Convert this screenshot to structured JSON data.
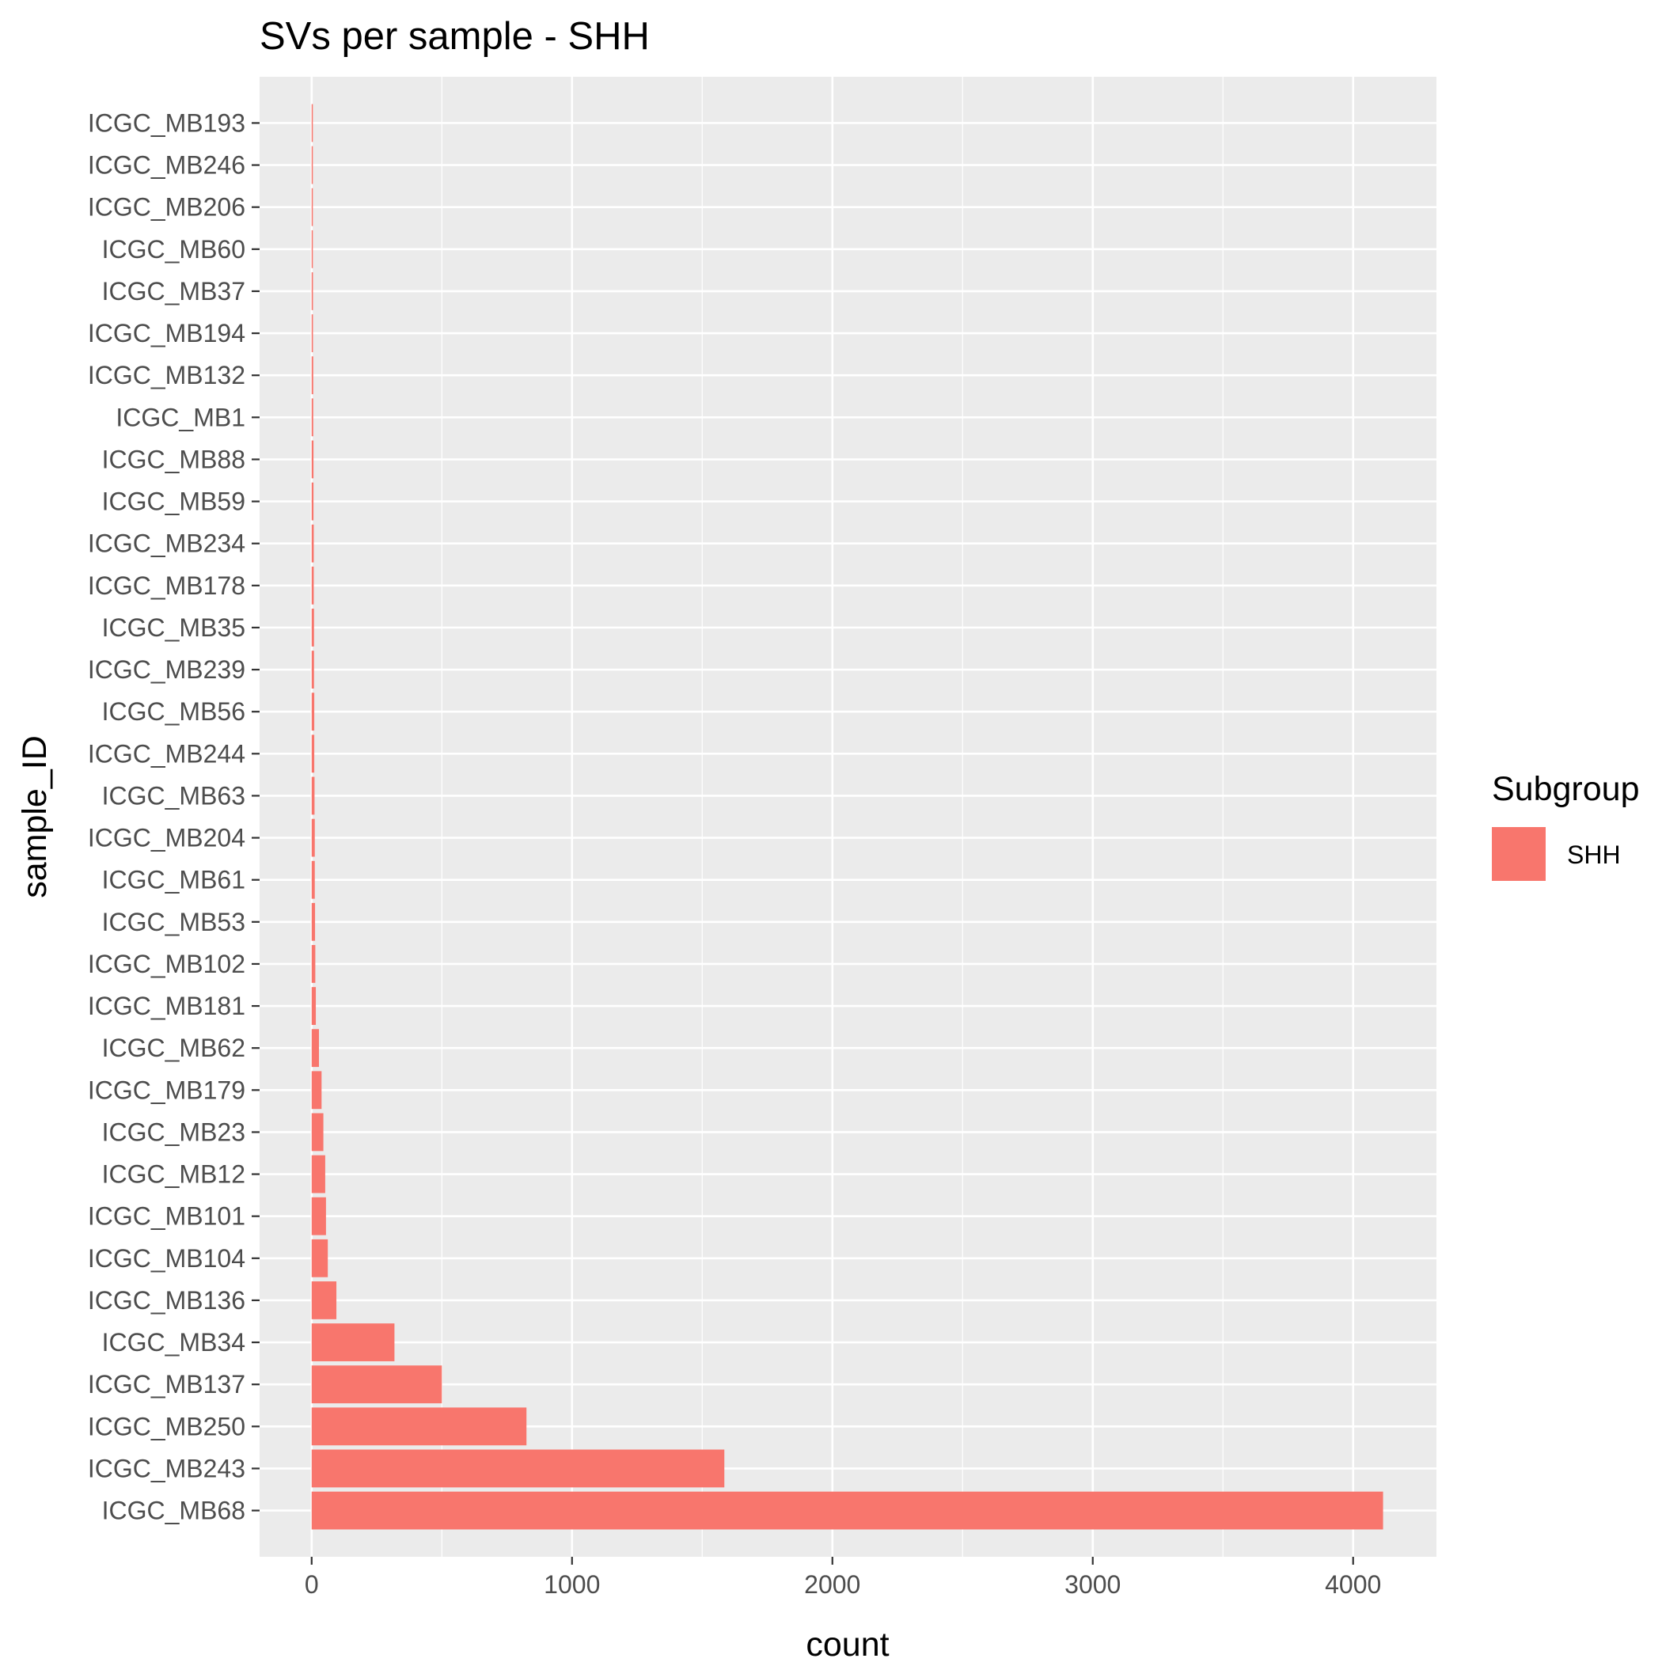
{
  "chart_data": {
    "type": "bar",
    "orientation": "horizontal",
    "title": "SVs per sample - SHH",
    "xlabel": "count",
    "ylabel": "sample_ID",
    "xlim": [
      -200,
      4320
    ],
    "xticks": [
      0,
      1000,
      2000,
      3000,
      4000
    ],
    "grid": true,
    "legend": {
      "title": "Subgroup",
      "placement": "right",
      "entries": [
        {
          "label": "SHH",
          "color": "#F8766D"
        }
      ]
    },
    "categories": [
      "ICGC_MB193",
      "ICGC_MB246",
      "ICGC_MB206",
      "ICGC_MB60",
      "ICGC_MB37",
      "ICGC_MB194",
      "ICGC_MB132",
      "ICGC_MB1",
      "ICGC_MB88",
      "ICGC_MB59",
      "ICGC_MB234",
      "ICGC_MB178",
      "ICGC_MB35",
      "ICGC_MB239",
      "ICGC_MB56",
      "ICGC_MB244",
      "ICGC_MB63",
      "ICGC_MB204",
      "ICGC_MB61",
      "ICGC_MB53",
      "ICGC_MB102",
      "ICGC_MB181",
      "ICGC_MB62",
      "ICGC_MB179",
      "ICGC_MB23",
      "ICGC_MB12",
      "ICGC_MB101",
      "ICGC_MB104",
      "ICGC_MB136",
      "ICGC_MB34",
      "ICGC_MB137",
      "ICGC_MB250",
      "ICGC_MB243",
      "ICGC_MB68"
    ],
    "series": [
      {
        "name": "SHH",
        "color": "#F8766D",
        "values": [
          1,
          2,
          3,
          4,
          5,
          5,
          6,
          6,
          7,
          7,
          8,
          8,
          9,
          9,
          10,
          10,
          11,
          12,
          12,
          13,
          14,
          16,
          28,
          38,
          45,
          52,
          55,
          62,
          95,
          318,
          500,
          825,
          1585,
          4115
        ]
      }
    ],
    "colors": {
      "panel_bg": "#EBEBEB",
      "grid": "#FFFFFF",
      "tick_text": "#4D4D4D",
      "tick_mark": "#333333"
    }
  }
}
